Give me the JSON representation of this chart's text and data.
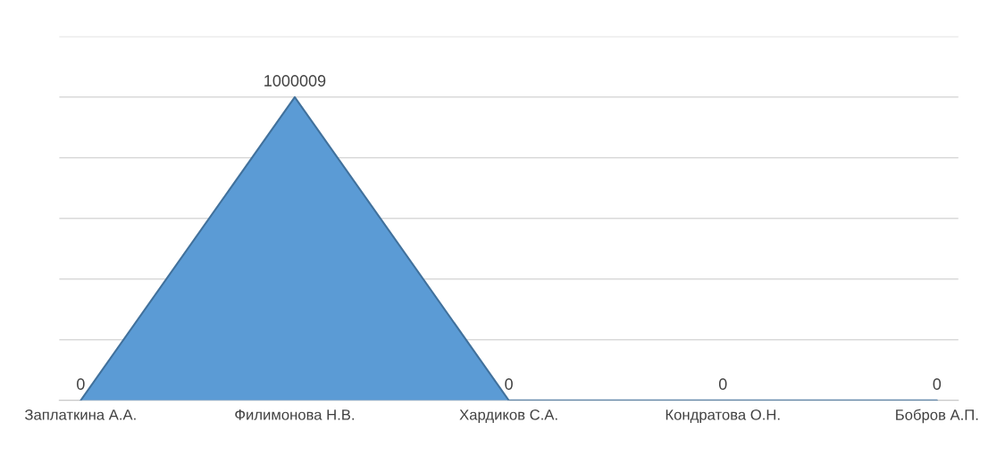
{
  "chart_data": {
    "type": "area",
    "categories": [
      "Заплаткина А.А.",
      "Филимонова Н.В.",
      "Хардиков С.А.",
      "Кондратова О.Н.",
      "Бобров А.П."
    ],
    "values": [
      0,
      1000009,
      0,
      0,
      0
    ],
    "color": "#5b9bd5",
    "ylim": [
      0,
      1200000
    ],
    "yticks": [
      {
        "value": 0,
        "label": null
      },
      {
        "value": 200000,
        "label": null
      },
      {
        "value": 400000,
        "label": null
      },
      {
        "value": 600000,
        "label": null
      },
      {
        "value": 800000,
        "label": null
      },
      {
        "value": 1000000,
        "label": null
      },
      {
        "value": 1200000,
        "label": null
      }
    ],
    "tick_labels": "x",
    "grid": "y",
    "data_labels": true
  }
}
